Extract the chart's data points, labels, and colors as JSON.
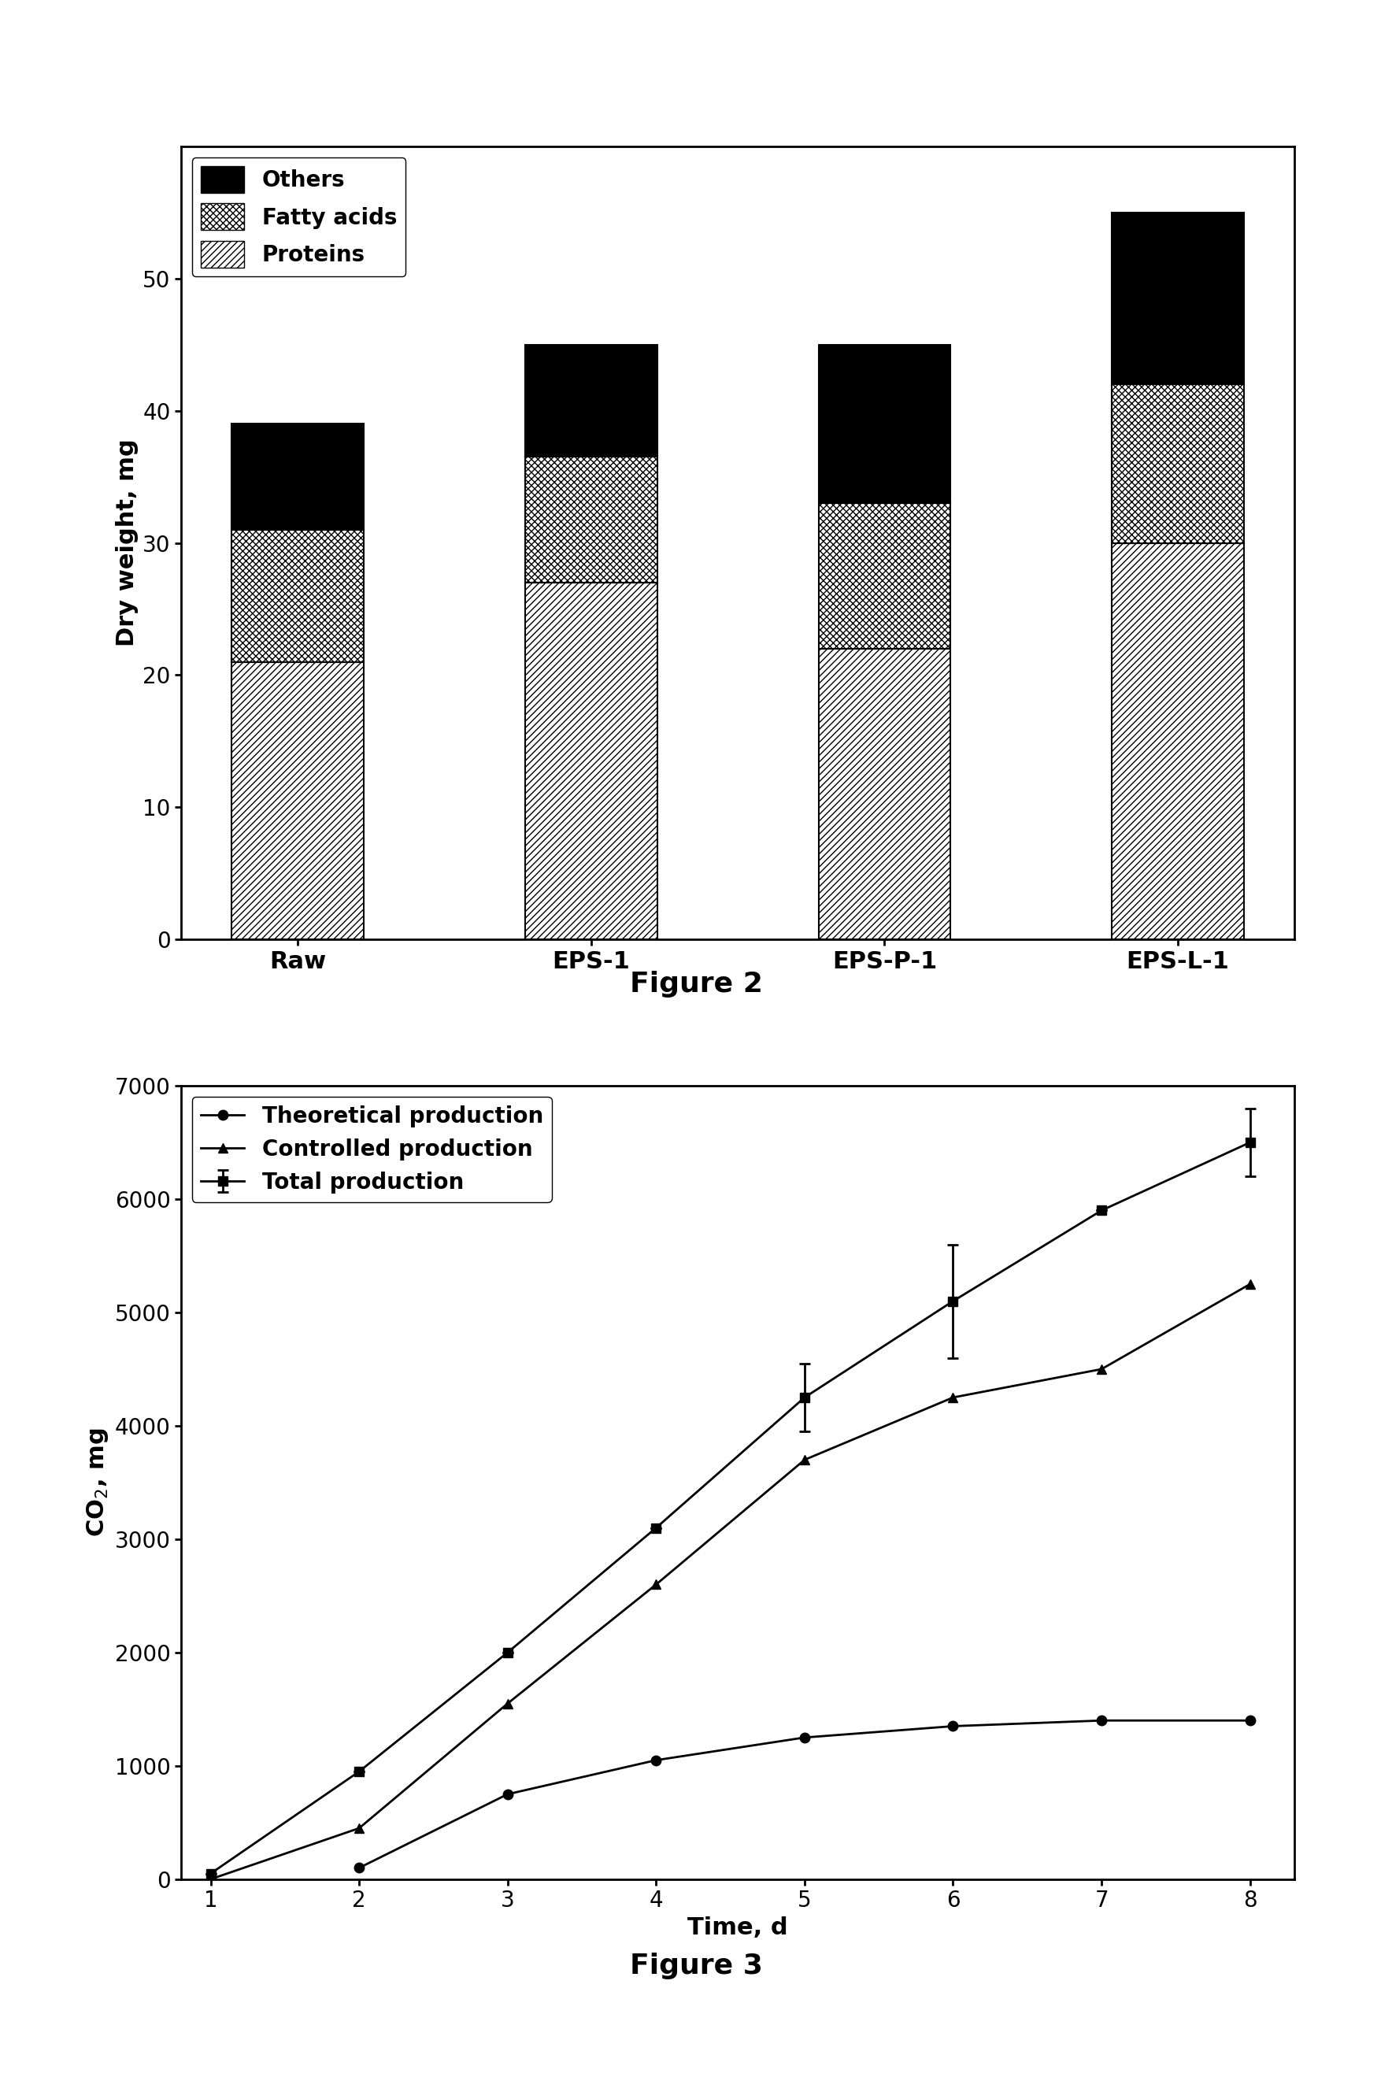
{
  "fig2": {
    "categories": [
      "Raw",
      "EPS-1",
      "EPS-P-1",
      "EPS-L-1"
    ],
    "proteins": [
      21.0,
      27.0,
      22.0,
      30.0
    ],
    "fatty_acids": [
      10.0,
      9.5,
      11.0,
      12.0
    ],
    "others": [
      8.0,
      8.5,
      12.0,
      13.0
    ],
    "ylabel": "Dry weight, mg",
    "ylim": [
      0,
      60
    ],
    "yticks": [
      0,
      10,
      20,
      30,
      40,
      50
    ],
    "figure_label": "Figure 2"
  },
  "fig3": {
    "time": [
      1,
      2,
      3,
      4,
      5,
      6,
      7,
      8
    ],
    "total_production": [
      50,
      950,
      2000,
      3100,
      4250,
      5100,
      5900,
      6500
    ],
    "total_production_err": [
      0,
      0,
      0,
      0,
      300,
      500,
      0,
      300
    ],
    "theoretical_time": [
      2,
      3,
      4,
      5,
      6,
      7,
      8
    ],
    "theoretical_production": [
      100,
      750,
      1050,
      1250,
      1350,
      1400,
      1400
    ],
    "controlled_production": [
      0,
      450,
      1550,
      2600,
      3700,
      4250,
      4500,
      5250
    ],
    "ylabel": "CO$_2$, mg",
    "xlabel": "Time, d",
    "ylim": [
      0,
      7000
    ],
    "yticks": [
      0,
      1000,
      2000,
      3000,
      4000,
      5000,
      6000,
      7000
    ],
    "xticks": [
      1,
      2,
      3,
      4,
      5,
      6,
      7,
      8
    ],
    "figure_label": "Figure 3",
    "legend": [
      "Total production",
      "Theoretical production",
      "Controlled production"
    ]
  },
  "background_color": "#ffffff",
  "font_size": 22,
  "tick_font_size": 20,
  "label_font_size": 22,
  "figure_label_font_size": 26
}
